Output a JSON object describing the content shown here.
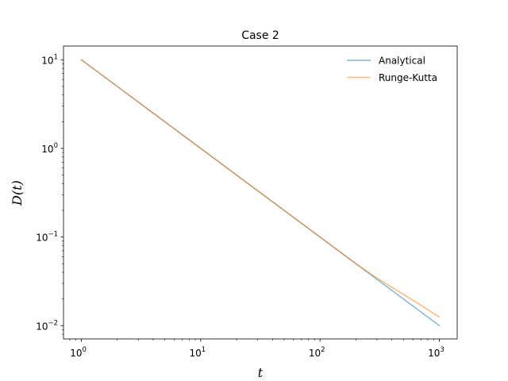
{
  "chart_data": {
    "type": "line",
    "title": "Case 2",
    "xlabel": "t",
    "ylabel": "D(t)",
    "xscale": "log",
    "yscale": "log",
    "xlim": [
      0.708,
      1412
    ],
    "ylim": [
      0.00708,
      14.3
    ],
    "grid": false,
    "legend": {
      "position": "upper right",
      "frame": false
    },
    "x_ticks": [
      {
        "base": "10",
        "exp": "0",
        "value": 1
      },
      {
        "base": "10",
        "exp": "1",
        "value": 10
      },
      {
        "base": "10",
        "exp": "2",
        "value": 100
      },
      {
        "base": "10",
        "exp": "3",
        "value": 1000
      }
    ],
    "y_ticks": [
      {
        "base": "10",
        "exp": "1",
        "value": 10
      },
      {
        "base": "10",
        "exp": "0",
        "value": 1
      },
      {
        "base": "10",
        "exp": "−1",
        "value": 0.1
      },
      {
        "base": "10",
        "exp": "−2",
        "value": 0.01
      }
    ],
    "series": [
      {
        "name": "Analytical",
        "color": "#1f77b4",
        "x": [
          1,
          2,
          5,
          10,
          20,
          50,
          100,
          200,
          300,
          500,
          700,
          1000
        ],
        "y": [
          10,
          5,
          2,
          1,
          0.5,
          0.2,
          0.1,
          0.05,
          0.0333,
          0.02,
          0.0143,
          0.01
        ]
      },
      {
        "name": "Runge-Kutta",
        "color": "#ff7f0e",
        "x": [
          1,
          2,
          5,
          10,
          20,
          50,
          100,
          200,
          300,
          500,
          700,
          1000
        ],
        "y": [
          10,
          5,
          2,
          1,
          0.5,
          0.2,
          0.1,
          0.05,
          0.0345,
          0.0225,
          0.017,
          0.0125
        ]
      }
    ]
  }
}
